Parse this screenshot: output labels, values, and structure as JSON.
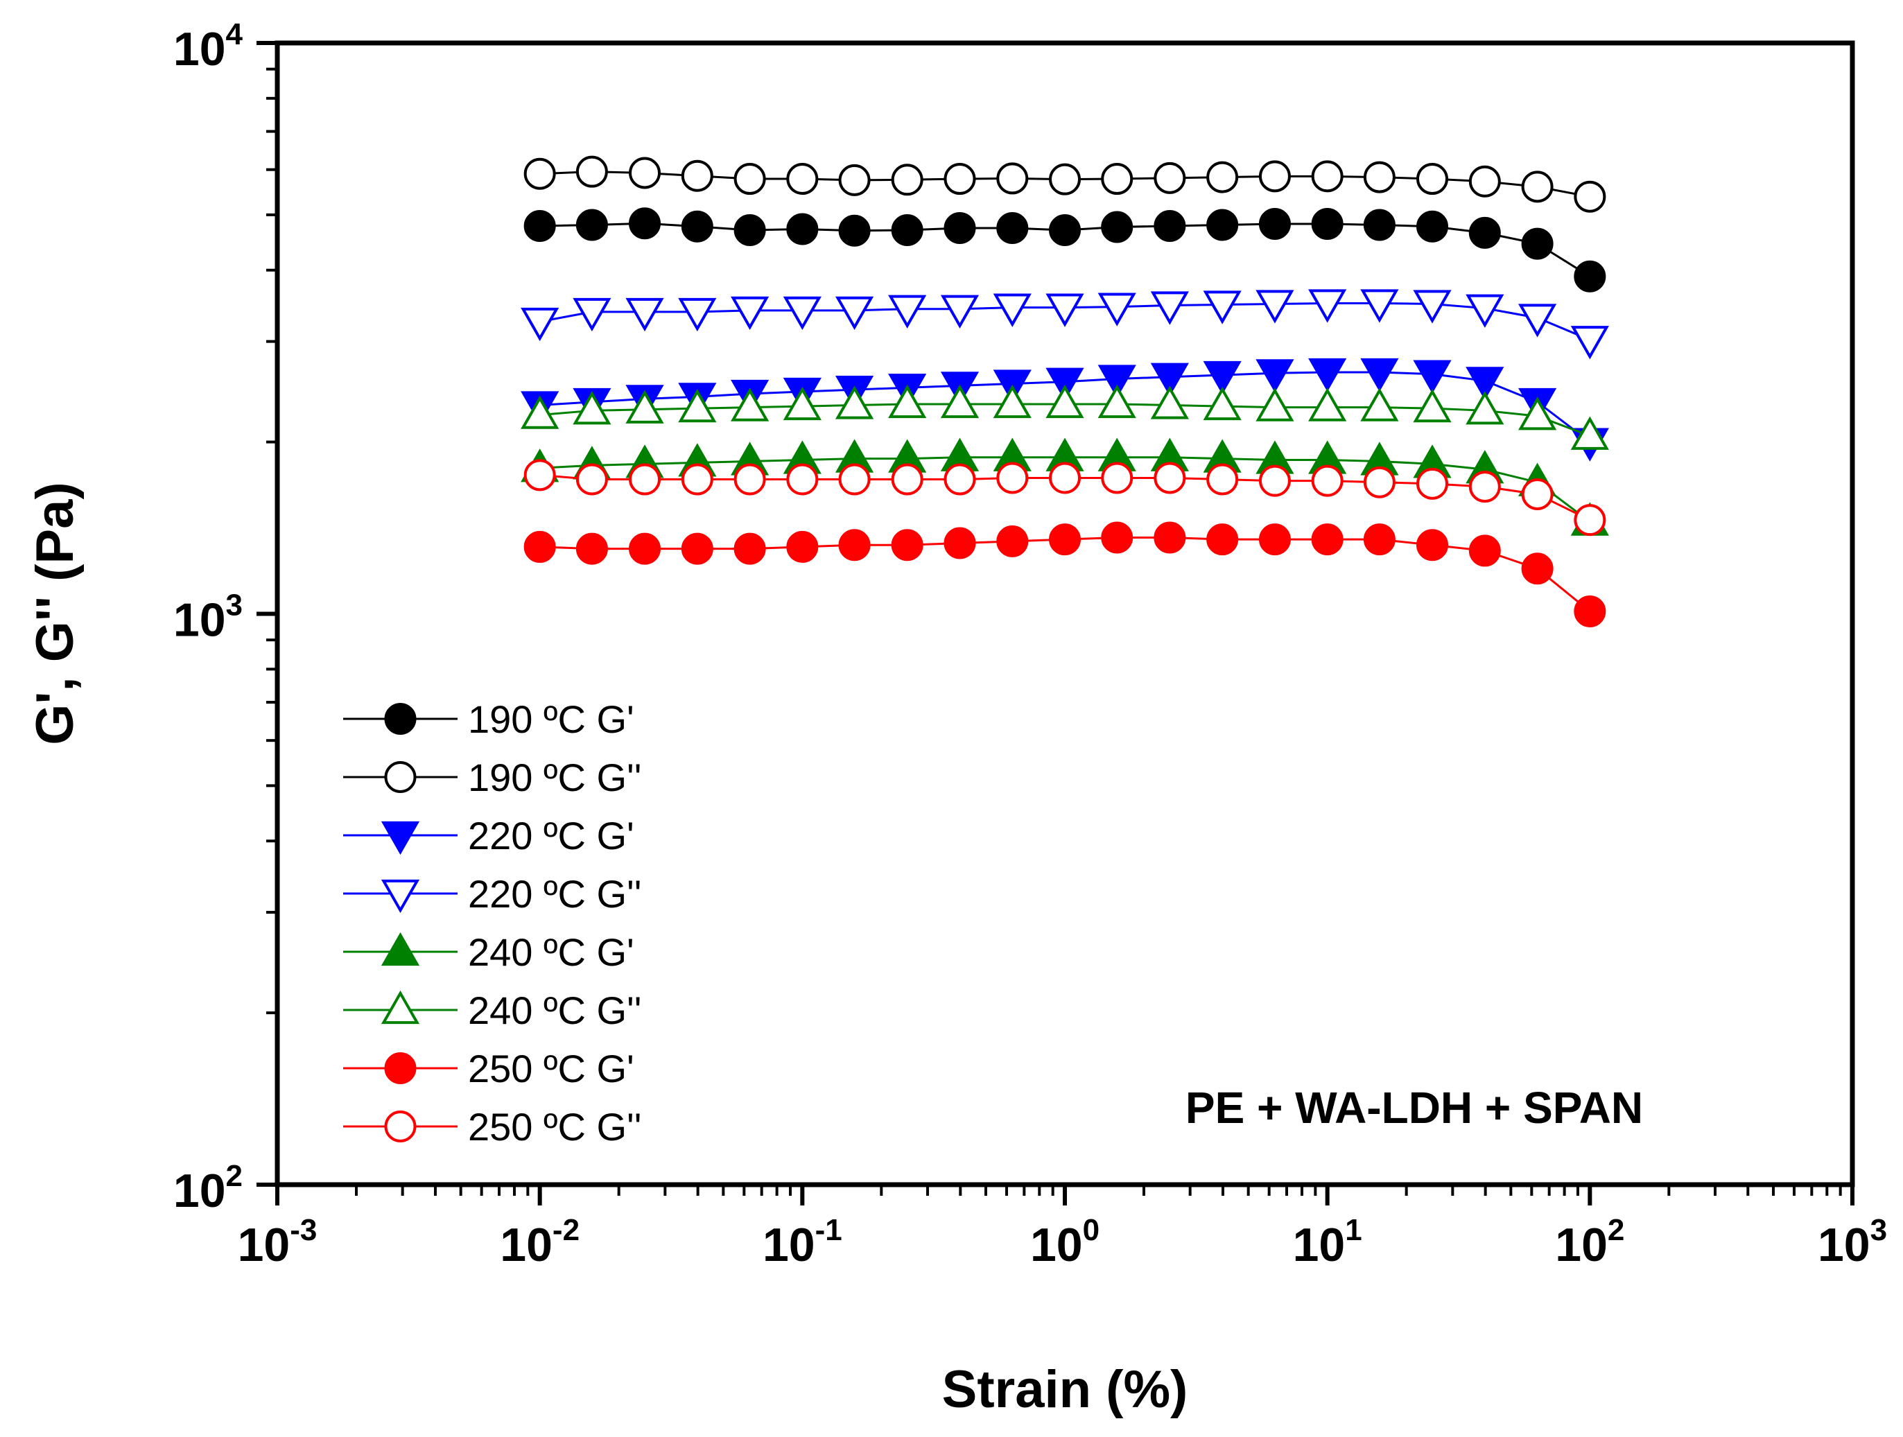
{
  "chart_data": {
    "type": "line",
    "title": "",
    "xlabel": "Strain (%)",
    "ylabel": "G', G'' (Pa)",
    "xscale": "log",
    "yscale": "log",
    "xlim": [
      0.001,
      1000
    ],
    "ylim": [
      100,
      10000
    ],
    "grid": false,
    "legend_position": "bottom-left",
    "annotation": "PE + WA-LDH + SPAN",
    "x_ticks": [
      {
        "base": "10",
        "exp": "-3"
      },
      {
        "base": "10",
        "exp": "-2"
      },
      {
        "base": "10",
        "exp": "-1"
      },
      {
        "base": "10",
        "exp": "0"
      },
      {
        "base": "10",
        "exp": "1"
      },
      {
        "base": "10",
        "exp": "2"
      },
      {
        "base": "10",
        "exp": "3"
      }
    ],
    "y_ticks": [
      {
        "base": "10",
        "exp": "2"
      },
      {
        "base": "10",
        "exp": "3"
      },
      {
        "base": "10",
        "exp": "4"
      }
    ],
    "x": [
      0.01,
      0.0158,
      0.0251,
      0.0398,
      0.0631,
      0.1,
      0.158,
      0.251,
      0.398,
      0.631,
      1,
      1.58,
      2.51,
      3.98,
      6.31,
      10,
      15.8,
      25.1,
      39.8,
      63.1,
      100
    ],
    "series": [
      {
        "name": "190 ºC G'",
        "color": "#000000",
        "marker": "circle",
        "filled": true,
        "values": [
          4780,
          4800,
          4830,
          4770,
          4700,
          4720,
          4690,
          4700,
          4740,
          4740,
          4700,
          4760,
          4780,
          4800,
          4820,
          4820,
          4800,
          4770,
          4650,
          4450,
          3900
        ]
      },
      {
        "name": "190 ºC G''",
        "color": "#000000",
        "marker": "circle",
        "filled": false,
        "values": [
          5900,
          5950,
          5920,
          5850,
          5780,
          5780,
          5750,
          5760,
          5780,
          5790,
          5770,
          5780,
          5800,
          5820,
          5840,
          5840,
          5820,
          5780,
          5720,
          5600,
          5380
        ]
      },
      {
        "name": "220 ºC G'",
        "color": "#0000ff",
        "marker": "triangle-down",
        "filled": true,
        "values": [
          2320,
          2350,
          2380,
          2400,
          2430,
          2450,
          2470,
          2490,
          2510,
          2530,
          2550,
          2580,
          2600,
          2620,
          2640,
          2650,
          2650,
          2630,
          2560,
          2350,
          2000
        ]
      },
      {
        "name": "220 ºC G''",
        "color": "#0000ff",
        "marker": "triangle-down",
        "filled": false,
        "values": [
          3250,
          3380,
          3380,
          3380,
          3400,
          3400,
          3400,
          3420,
          3420,
          3440,
          3440,
          3450,
          3470,
          3480,
          3490,
          3500,
          3500,
          3490,
          3430,
          3300,
          3020
        ]
      },
      {
        "name": "240 ºC G'",
        "color": "#008000",
        "marker": "triangle-up",
        "filled": true,
        "values": [
          1800,
          1820,
          1830,
          1840,
          1850,
          1860,
          1870,
          1870,
          1880,
          1880,
          1880,
          1880,
          1880,
          1870,
          1860,
          1860,
          1850,
          1830,
          1790,
          1700,
          1450
        ]
      },
      {
        "name": "240 ºC G''",
        "color": "#008000",
        "marker": "triangle-up",
        "filled": false,
        "values": [
          2230,
          2270,
          2280,
          2290,
          2300,
          2310,
          2320,
          2330,
          2330,
          2330,
          2330,
          2330,
          2320,
          2310,
          2300,
          2300,
          2300,
          2290,
          2270,
          2220,
          2050
        ]
      },
      {
        "name": "250 ºC G'",
        "color": "#ff0000",
        "marker": "circle",
        "filled": true,
        "values": [
          1310,
          1300,
          1300,
          1300,
          1300,
          1310,
          1320,
          1320,
          1330,
          1340,
          1350,
          1360,
          1360,
          1350,
          1350,
          1350,
          1350,
          1320,
          1290,
          1200,
          1010
        ]
      },
      {
        "name": "250 ºC G''",
        "color": "#ff0000",
        "marker": "circle",
        "filled": false,
        "values": [
          1750,
          1720,
          1720,
          1720,
          1720,
          1720,
          1720,
          1720,
          1720,
          1730,
          1730,
          1730,
          1730,
          1720,
          1710,
          1710,
          1700,
          1690,
          1670,
          1620,
          1460
        ]
      }
    ]
  }
}
